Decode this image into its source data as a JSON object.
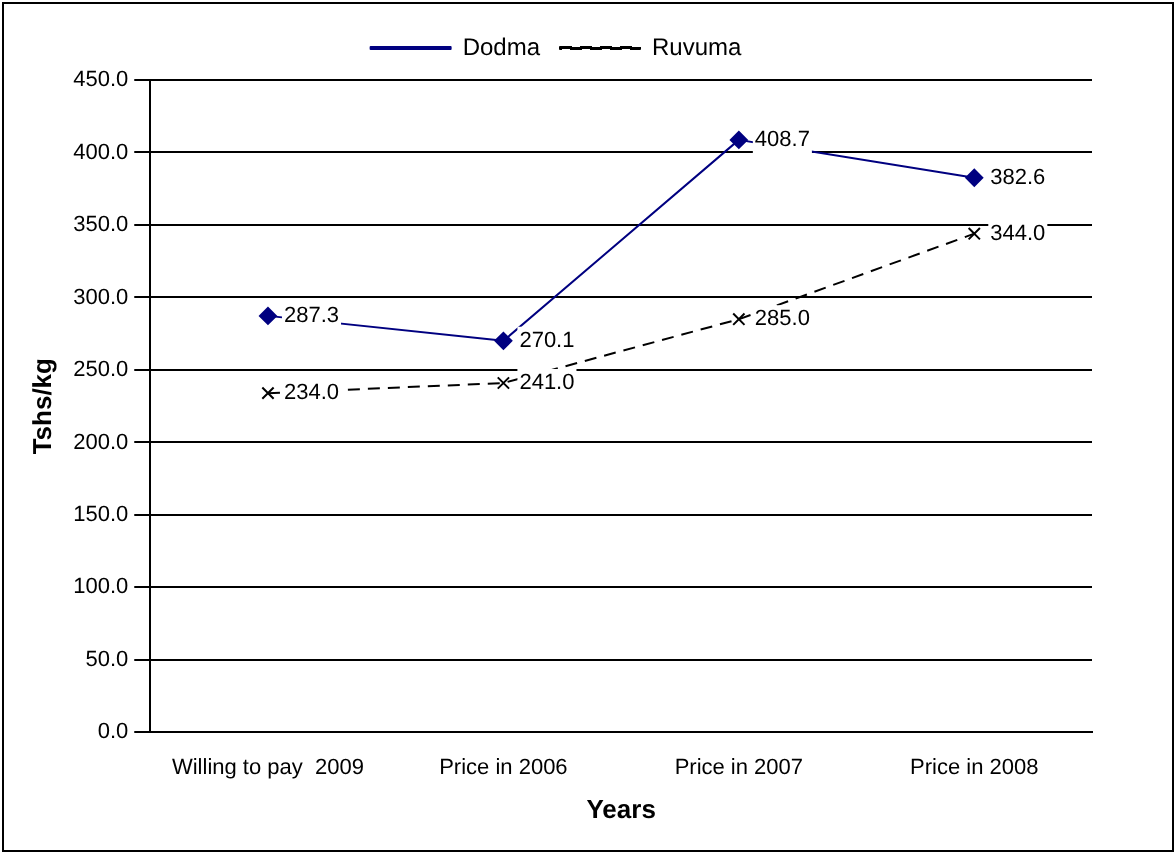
{
  "chart_data": {
    "type": "line",
    "xlabel": "Years",
    "ylabel": "Tshs/kg",
    "categories": [
      "Willing to pay  2009",
      "Price in 2006",
      "Price in 2007",
      "Price in 2008"
    ],
    "series": [
      {
        "name": "Dodma",
        "color": "#000080",
        "values": [
          287.3,
          270.1,
          408.7,
          382.6
        ],
        "marker": "diamond",
        "line_style": "solid",
        "value_labels": [
          "287.3",
          "270.1",
          "408.7",
          "382.6"
        ]
      },
      {
        "name": "Ruvuma",
        "color": "#000000",
        "values": [
          234.0,
          241.0,
          285.0,
          344.0
        ],
        "marker": "cross",
        "line_style": "dashed",
        "value_labels": [
          "234.0",
          "241.0",
          "285.0",
          "344.0"
        ]
      }
    ],
    "ylim": [
      0,
      450
    ],
    "yticks": [
      {
        "value": 0,
        "label": "0.0"
      },
      {
        "value": 50,
        "label": "50.0"
      },
      {
        "value": 100,
        "label": "100.0"
      },
      {
        "value": 150,
        "label": "150.0"
      },
      {
        "value": 200,
        "label": "200.0"
      },
      {
        "value": 250,
        "label": "250.0"
      },
      {
        "value": 300,
        "label": "300.0"
      },
      {
        "value": 350,
        "label": "350.0"
      },
      {
        "value": 400,
        "label": "400.0"
      },
      {
        "value": 450,
        "label": "450.0"
      }
    ],
    "grid": "y",
    "legend": "top"
  }
}
